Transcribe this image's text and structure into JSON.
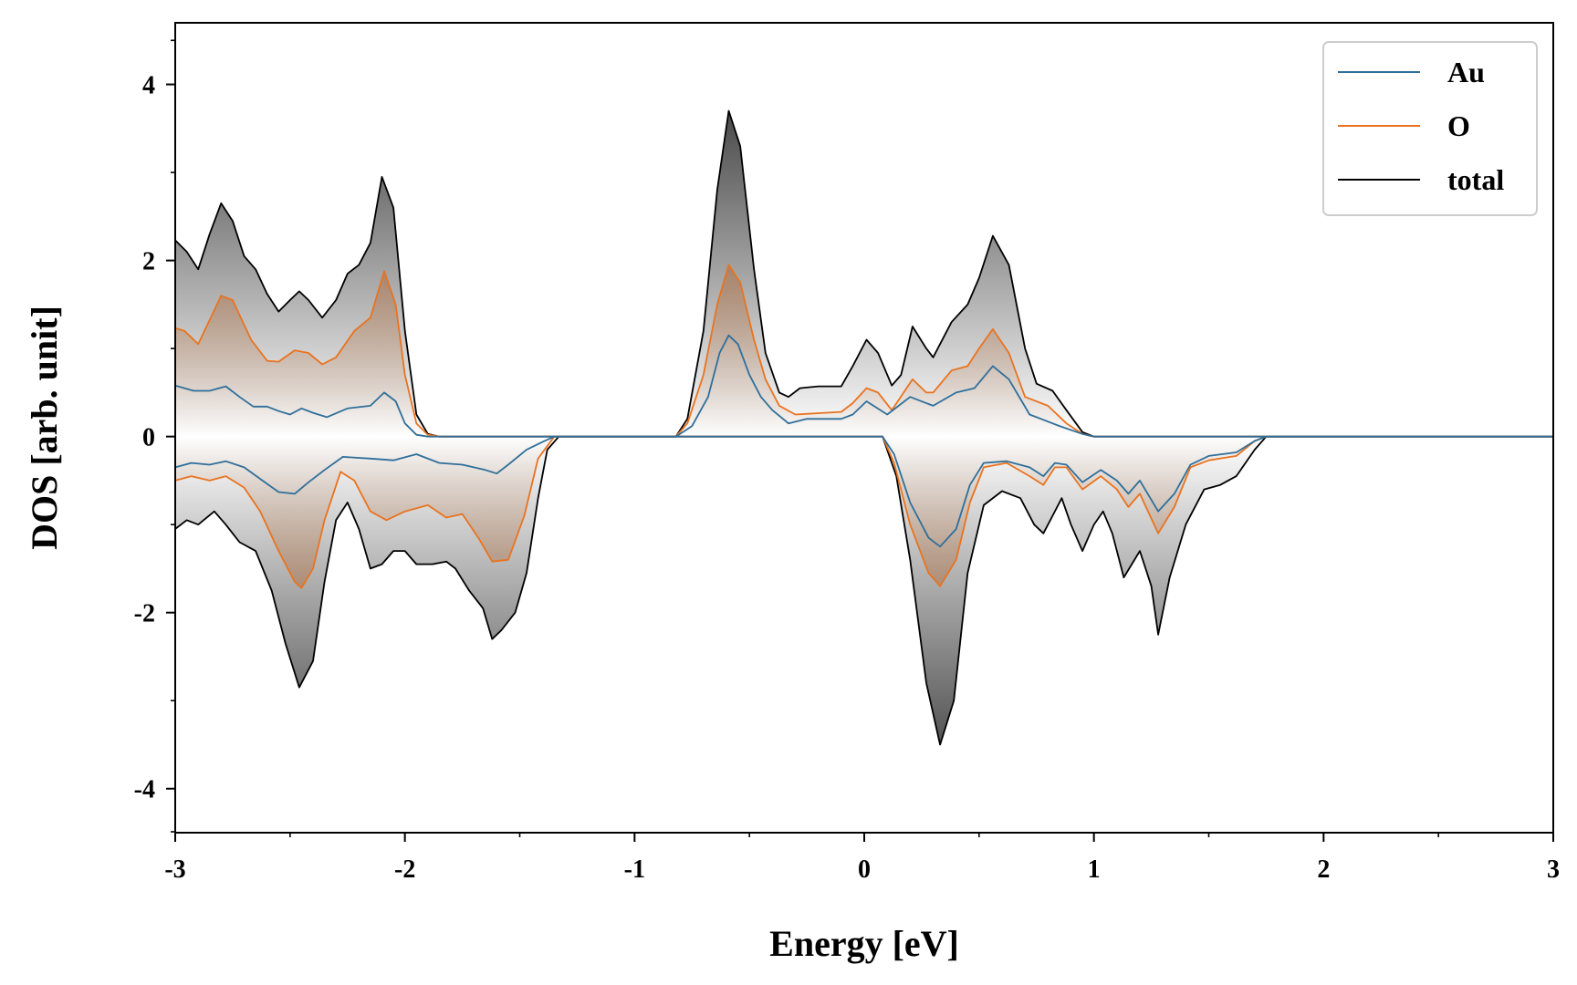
{
  "chart_data": {
    "type": "area",
    "xlabel": "Energy [eV]",
    "ylabel": "DOS [arb. unit]",
    "xlim": [
      -3,
      3
    ],
    "ylim": [
      -4.5,
      4.7
    ],
    "xticks": [
      -3,
      -2,
      -1,
      0,
      1,
      2,
      3
    ],
    "yticks": [
      -4,
      -2,
      0,
      2,
      4
    ],
    "legend_position": "top-right",
    "grid": false,
    "colors": {
      "Au": "#2f6f9a",
      "O": "#e9731f",
      "total": "#000000",
      "fill_O": "#b0622a",
      "fill_total": "#303030"
    },
    "series": [
      {
        "name": "Au",
        "up": [
          [
            -3,
            0.58
          ],
          [
            -2.92,
            0.52
          ],
          [
            -2.85,
            0.52
          ],
          [
            -2.78,
            0.57
          ],
          [
            -2.72,
            0.45
          ],
          [
            -2.66,
            0.34
          ],
          [
            -2.6,
            0.34
          ],
          [
            -2.55,
            0.29
          ],
          [
            -2.5,
            0.25
          ],
          [
            -2.45,
            0.32
          ],
          [
            -2.4,
            0.27
          ],
          [
            -2.34,
            0.22
          ],
          [
            -2.25,
            0.32
          ],
          [
            -2.15,
            0.35
          ],
          [
            -2.09,
            0.5
          ],
          [
            -2.04,
            0.4
          ],
          [
            -2,
            0.15
          ],
          [
            -1.95,
            0.02
          ],
          [
            -1.9,
            0
          ],
          [
            -0.82,
            0
          ],
          [
            -0.75,
            0.12
          ],
          [
            -0.68,
            0.45
          ],
          [
            -0.63,
            0.95
          ],
          [
            -0.59,
            1.15
          ],
          [
            -0.55,
            1.05
          ],
          [
            -0.5,
            0.7
          ],
          [
            -0.45,
            0.45
          ],
          [
            -0.4,
            0.3
          ],
          [
            -0.33,
            0.15
          ],
          [
            -0.25,
            0.2
          ],
          [
            -0.1,
            0.2
          ],
          [
            -0.05,
            0.25
          ],
          [
            0.01,
            0.4
          ],
          [
            0.1,
            0.25
          ],
          [
            0.2,
            0.45
          ],
          [
            0.3,
            0.35
          ],
          [
            0.4,
            0.5
          ],
          [
            0.48,
            0.55
          ],
          [
            0.56,
            0.8
          ],
          [
            0.63,
            0.65
          ],
          [
            0.72,
            0.25
          ],
          [
            0.85,
            0.12
          ],
          [
            0.95,
            0.03
          ],
          [
            1,
            0
          ],
          [
            3,
            0
          ]
        ],
        "down": [
          [
            -3,
            -0.35
          ],
          [
            -2.93,
            -0.3
          ],
          [
            -2.85,
            -0.32
          ],
          [
            -2.78,
            -0.28
          ],
          [
            -2.7,
            -0.35
          ],
          [
            -2.62,
            -0.5
          ],
          [
            -2.55,
            -0.63
          ],
          [
            -2.48,
            -0.65
          ],
          [
            -2.42,
            -0.52
          ],
          [
            -2.35,
            -0.38
          ],
          [
            -2.27,
            -0.23
          ],
          [
            -2.15,
            -0.25
          ],
          [
            -2.05,
            -0.27
          ],
          [
            -1.95,
            -0.2
          ],
          [
            -1.85,
            -0.3
          ],
          [
            -1.75,
            -0.32
          ],
          [
            -1.65,
            -0.38
          ],
          [
            -1.6,
            -0.42
          ],
          [
            -1.55,
            -0.32
          ],
          [
            -1.47,
            -0.15
          ],
          [
            -1.4,
            -0.06
          ],
          [
            -1.35,
            0
          ],
          [
            0.08,
            0
          ],
          [
            0.13,
            -0.2
          ],
          [
            0.2,
            -0.75
          ],
          [
            0.28,
            -1.15
          ],
          [
            0.33,
            -1.25
          ],
          [
            0.4,
            -1.05
          ],
          [
            0.46,
            -0.55
          ],
          [
            0.52,
            -0.3
          ],
          [
            0.62,
            -0.28
          ],
          [
            0.72,
            -0.35
          ],
          [
            0.78,
            -0.45
          ],
          [
            0.83,
            -0.3
          ],
          [
            0.88,
            -0.32
          ],
          [
            0.95,
            -0.52
          ],
          [
            1.03,
            -0.38
          ],
          [
            1.1,
            -0.5
          ],
          [
            1.15,
            -0.65
          ],
          [
            1.2,
            -0.5
          ],
          [
            1.28,
            -0.85
          ],
          [
            1.35,
            -0.65
          ],
          [
            1.42,
            -0.32
          ],
          [
            1.5,
            -0.22
          ],
          [
            1.62,
            -0.18
          ],
          [
            1.7,
            -0.05
          ],
          [
            1.75,
            0
          ],
          [
            3,
            0
          ]
        ]
      },
      {
        "name": "O",
        "up": [
          [
            -3,
            1.23
          ],
          [
            -2.96,
            1.2
          ],
          [
            -2.9,
            1.05
          ],
          [
            -2.8,
            1.6
          ],
          [
            -2.75,
            1.55
          ],
          [
            -2.67,
            1.1
          ],
          [
            -2.6,
            0.86
          ],
          [
            -2.55,
            0.85
          ],
          [
            -2.48,
            0.98
          ],
          [
            -2.42,
            0.95
          ],
          [
            -2.36,
            0.82
          ],
          [
            -2.3,
            0.9
          ],
          [
            -2.22,
            1.2
          ],
          [
            -2.15,
            1.35
          ],
          [
            -2.09,
            1.88
          ],
          [
            -2.04,
            1.5
          ],
          [
            -2,
            0.7
          ],
          [
            -1.95,
            0.15
          ],
          [
            -1.9,
            0.02
          ],
          [
            -1.85,
            0
          ],
          [
            -0.82,
            0
          ],
          [
            -0.77,
            0.15
          ],
          [
            -0.7,
            0.7
          ],
          [
            -0.64,
            1.5
          ],
          [
            -0.59,
            1.95
          ],
          [
            -0.54,
            1.75
          ],
          [
            -0.48,
            1.1
          ],
          [
            -0.43,
            0.65
          ],
          [
            -0.37,
            0.35
          ],
          [
            -0.3,
            0.25
          ],
          [
            -0.1,
            0.28
          ],
          [
            -0.05,
            0.38
          ],
          [
            0.01,
            0.55
          ],
          [
            0.06,
            0.5
          ],
          [
            0.12,
            0.3
          ],
          [
            0.21,
            0.65
          ],
          [
            0.27,
            0.5
          ],
          [
            0.3,
            0.5
          ],
          [
            0.38,
            0.75
          ],
          [
            0.45,
            0.8
          ],
          [
            0.5,
            1.0
          ],
          [
            0.56,
            1.22
          ],
          [
            0.63,
            0.95
          ],
          [
            0.7,
            0.45
          ],
          [
            0.8,
            0.35
          ],
          [
            0.88,
            0.15
          ],
          [
            0.95,
            0.03
          ],
          [
            1,
            0
          ],
          [
            3,
            0
          ]
        ],
        "down": [
          [
            -3,
            -0.5
          ],
          [
            -2.93,
            -0.45
          ],
          [
            -2.85,
            -0.5
          ],
          [
            -2.78,
            -0.45
          ],
          [
            -2.7,
            -0.58
          ],
          [
            -2.63,
            -0.85
          ],
          [
            -2.55,
            -1.3
          ],
          [
            -2.48,
            -1.65
          ],
          [
            -2.45,
            -1.72
          ],
          [
            -2.4,
            -1.5
          ],
          [
            -2.35,
            -0.95
          ],
          [
            -2.28,
            -0.4
          ],
          [
            -2.22,
            -0.5
          ],
          [
            -2.15,
            -0.85
          ],
          [
            -2.08,
            -0.95
          ],
          [
            -2.0,
            -0.85
          ],
          [
            -1.9,
            -0.78
          ],
          [
            -1.82,
            -0.92
          ],
          [
            -1.75,
            -0.88
          ],
          [
            -1.68,
            -1.15
          ],
          [
            -1.62,
            -1.42
          ],
          [
            -1.55,
            -1.4
          ],
          [
            -1.48,
            -0.9
          ],
          [
            -1.42,
            -0.25
          ],
          [
            -1.35,
            0
          ],
          [
            0.08,
            0
          ],
          [
            0.13,
            -0.3
          ],
          [
            0.2,
            -1.0
          ],
          [
            0.28,
            -1.55
          ],
          [
            0.33,
            -1.7
          ],
          [
            0.4,
            -1.4
          ],
          [
            0.46,
            -0.75
          ],
          [
            0.52,
            -0.35
          ],
          [
            0.62,
            -0.3
          ],
          [
            0.72,
            -0.45
          ],
          [
            0.78,
            -0.55
          ],
          [
            0.83,
            -0.35
          ],
          [
            0.88,
            -0.35
          ],
          [
            0.95,
            -0.6
          ],
          [
            1.03,
            -0.45
          ],
          [
            1.1,
            -0.6
          ],
          [
            1.15,
            -0.8
          ],
          [
            1.2,
            -0.65
          ],
          [
            1.28,
            -1.1
          ],
          [
            1.35,
            -0.8
          ],
          [
            1.42,
            -0.35
          ],
          [
            1.5,
            -0.27
          ],
          [
            1.62,
            -0.22
          ],
          [
            1.7,
            -0.05
          ],
          [
            1.75,
            0
          ],
          [
            3,
            0
          ]
        ]
      },
      {
        "name": "total",
        "up": [
          [
            -3,
            2.23
          ],
          [
            -2.95,
            2.1
          ],
          [
            -2.9,
            1.9
          ],
          [
            -2.85,
            2.3
          ],
          [
            -2.8,
            2.65
          ],
          [
            -2.75,
            2.45
          ],
          [
            -2.7,
            2.05
          ],
          [
            -2.65,
            1.9
          ],
          [
            -2.6,
            1.62
          ],
          [
            -2.55,
            1.42
          ],
          [
            -2.5,
            1.55
          ],
          [
            -2.46,
            1.65
          ],
          [
            -2.42,
            1.55
          ],
          [
            -2.36,
            1.35
          ],
          [
            -2.3,
            1.55
          ],
          [
            -2.25,
            1.85
          ],
          [
            -2.2,
            1.95
          ],
          [
            -2.15,
            2.2
          ],
          [
            -2.1,
            2.95
          ],
          [
            -2.05,
            2.6
          ],
          [
            -2.0,
            1.2
          ],
          [
            -1.95,
            0.25
          ],
          [
            -1.9,
            0.03
          ],
          [
            -1.85,
            0
          ],
          [
            -0.82,
            0
          ],
          [
            -0.77,
            0.2
          ],
          [
            -0.7,
            1.2
          ],
          [
            -0.64,
            2.8
          ],
          [
            -0.59,
            3.7
          ],
          [
            -0.54,
            3.3
          ],
          [
            -0.48,
            1.9
          ],
          [
            -0.43,
            0.95
          ],
          [
            -0.37,
            0.5
          ],
          [
            -0.33,
            0.45
          ],
          [
            -0.28,
            0.55
          ],
          [
            -0.2,
            0.57
          ],
          [
            -0.1,
            0.57
          ],
          [
            -0.05,
            0.8
          ],
          [
            0.01,
            1.1
          ],
          [
            0.06,
            0.95
          ],
          [
            0.12,
            0.58
          ],
          [
            0.16,
            0.7
          ],
          [
            0.21,
            1.25
          ],
          [
            0.27,
            1.0
          ],
          [
            0.3,
            0.9
          ],
          [
            0.38,
            1.3
          ],
          [
            0.45,
            1.5
          ],
          [
            0.5,
            1.8
          ],
          [
            0.56,
            2.28
          ],
          [
            0.63,
            1.95
          ],
          [
            0.7,
            1.0
          ],
          [
            0.75,
            0.6
          ],
          [
            0.82,
            0.52
          ],
          [
            0.88,
            0.3
          ],
          [
            0.95,
            0.05
          ],
          [
            1,
            0
          ],
          [
            3,
            0
          ]
        ],
        "down": [
          [
            -3,
            -1.05
          ],
          [
            -2.95,
            -0.95
          ],
          [
            -2.9,
            -1.0
          ],
          [
            -2.83,
            -0.85
          ],
          [
            -2.78,
            -1.0
          ],
          [
            -2.72,
            -1.2
          ],
          [
            -2.65,
            -1.3
          ],
          [
            -2.58,
            -1.75
          ],
          [
            -2.52,
            -2.35
          ],
          [
            -2.46,
            -2.85
          ],
          [
            -2.4,
            -2.55
          ],
          [
            -2.35,
            -1.65
          ],
          [
            -2.3,
            -0.95
          ],
          [
            -2.25,
            -0.75
          ],
          [
            -2.2,
            -1.05
          ],
          [
            -2.15,
            -1.5
          ],
          [
            -2.1,
            -1.45
          ],
          [
            -2.05,
            -1.3
          ],
          [
            -2.0,
            -1.3
          ],
          [
            -1.95,
            -1.45
          ],
          [
            -1.88,
            -1.45
          ],
          [
            -1.82,
            -1.42
          ],
          [
            -1.78,
            -1.5
          ],
          [
            -1.72,
            -1.75
          ],
          [
            -1.66,
            -1.95
          ],
          [
            -1.62,
            -2.3
          ],
          [
            -1.58,
            -2.2
          ],
          [
            -1.52,
            -2.0
          ],
          [
            -1.47,
            -1.55
          ],
          [
            -1.42,
            -0.7
          ],
          [
            -1.38,
            -0.15
          ],
          [
            -1.33,
            0
          ],
          [
            0.08,
            0
          ],
          [
            0.14,
            -0.45
          ],
          [
            0.2,
            -1.4
          ],
          [
            0.27,
            -2.8
          ],
          [
            0.33,
            -3.5
          ],
          [
            0.39,
            -3.0
          ],
          [
            0.45,
            -1.55
          ],
          [
            0.52,
            -0.78
          ],
          [
            0.6,
            -0.62
          ],
          [
            0.68,
            -0.7
          ],
          [
            0.74,
            -1.0
          ],
          [
            0.78,
            -1.1
          ],
          [
            0.82,
            -0.9
          ],
          [
            0.86,
            -0.7
          ],
          [
            0.9,
            -1.0
          ],
          [
            0.95,
            -1.3
          ],
          [
            1.0,
            -1.0
          ],
          [
            1.04,
            -0.85
          ],
          [
            1.08,
            -1.1
          ],
          [
            1.13,
            -1.6
          ],
          [
            1.2,
            -1.3
          ],
          [
            1.25,
            -1.7
          ],
          [
            1.28,
            -2.25
          ],
          [
            1.33,
            -1.6
          ],
          [
            1.4,
            -1.0
          ],
          [
            1.48,
            -0.6
          ],
          [
            1.55,
            -0.55
          ],
          [
            1.62,
            -0.45
          ],
          [
            1.7,
            -0.15
          ],
          [
            1.75,
            0
          ],
          [
            3,
            0
          ]
        ]
      }
    ]
  }
}
